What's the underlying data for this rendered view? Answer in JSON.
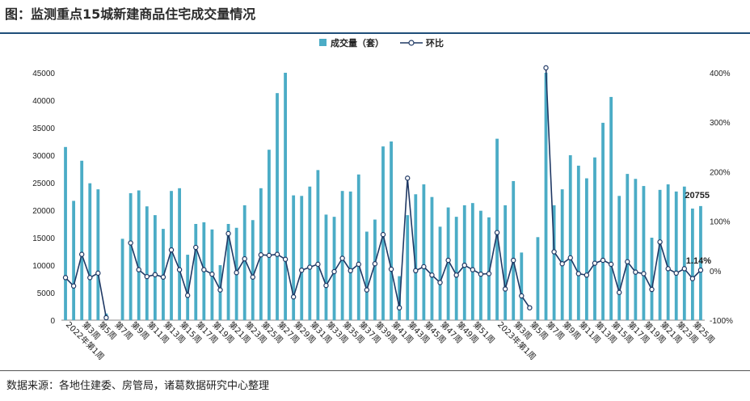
{
  "title": "图：监测重点15城新建商品住宅成交量情况",
  "source": "数据来源：各地住建委、房管局，诸葛数据研究中心整理",
  "colors": {
    "bar": "#4bacc6",
    "line": "#1f3864",
    "accent": "#1f4e79"
  },
  "chart_data": {
    "type": "bar",
    "legend": [
      "成交量（套）",
      "环比"
    ],
    "legend_position": "top-center",
    "grid": false,
    "y_left": {
      "ticks": [
        "0",
        "5000",
        "10000",
        "15000",
        "20000",
        "25000",
        "30000",
        "35000",
        "40000",
        "45000"
      ],
      "ylim": [
        0,
        45000
      ]
    },
    "y_right": {
      "ticks": [
        "-100%",
        "0%",
        "100%",
        "200%",
        "300%",
        "400%"
      ],
      "ylim": [
        -1.0,
        4.0
      ]
    },
    "x_labels": [
      "2022年第1周",
      "第3周",
      "第5周",
      "第7周",
      "第9周",
      "第11周",
      "第13周",
      "第15周",
      "第17周",
      "第19周",
      "第21周",
      "第23周",
      "第25周",
      "第27周",
      "第29周",
      "第31周",
      "第33周",
      "第35周",
      "第37周",
      "第39周",
      "第41周",
      "第43周",
      "第45周",
      "第47周",
      "第49周",
      "第51周",
      "2023年第1周",
      "第3周",
      "第5周",
      "第7周",
      "第9周",
      "第11周",
      "第13周",
      "第15周",
      "第17周",
      "第19周",
      "第21周",
      "第23周",
      "第25周"
    ],
    "series": [
      {
        "name": "成交量（套）",
        "type": "bar",
        "values": [
          31500,
          21700,
          29000,
          24900,
          23800,
          1200,
          0,
          14800,
          23100,
          23600,
          20700,
          19100,
          16600,
          23500,
          24000,
          11900,
          17500,
          17800,
          16500,
          10000,
          17500,
          16800,
          20900,
          18200,
          24000,
          31000,
          41300,
          45000,
          22700,
          22600,
          24300,
          27300,
          19200,
          18800,
          23500,
          23400,
          26500,
          16100,
          18300,
          31600,
          32500,
          8000,
          19100,
          22900,
          24700,
          22400,
          17000,
          20500,
          18800,
          20900,
          21300,
          19900,
          18700,
          33000,
          20900,
          25300,
          12300,
          0,
          15100,
          45000,
          20900,
          23800,
          30000,
          28100,
          25800,
          29600,
          35900,
          40600,
          22600,
          26600,
          25700,
          24400,
          15000,
          23700,
          24700,
          23400,
          24300,
          20300,
          20755
        ]
      },
      {
        "name": "环比",
        "type": "line",
        "values": [
          -0.14,
          -0.31,
          0.33,
          -0.14,
          -0.05,
          -0.95,
          null,
          null,
          0.56,
          0.02,
          -0.12,
          -0.08,
          -0.13,
          0.42,
          0.02,
          -0.5,
          0.47,
          0.02,
          -0.07,
          -0.39,
          0.75,
          -0.04,
          0.24,
          -0.13,
          0.32,
          0.31,
          0.33,
          0.23,
          -0.53,
          0.01,
          0.07,
          0.13,
          -0.3,
          -0.02,
          0.25,
          0.0,
          0.13,
          -0.39,
          0.14,
          0.73,
          0.03,
          -0.75,
          1.87,
          0.0,
          0.08,
          -0.09,
          -0.24,
          0.21,
          -0.09,
          0.11,
          0.02,
          -0.07,
          -0.06,
          0.77,
          -0.37,
          0.21,
          -0.51,
          -0.75,
          null,
          4.1,
          0.38,
          0.14,
          0.26,
          -0.06,
          -0.09,
          0.15,
          0.21,
          0.13,
          -0.44,
          0.18,
          -0.03,
          -0.06,
          -0.38,
          0.58,
          0.04,
          -0.05,
          0.04,
          -0.16,
          0.0114
        ]
      }
    ],
    "annotations": [
      "20755",
      "1.14%"
    ]
  }
}
